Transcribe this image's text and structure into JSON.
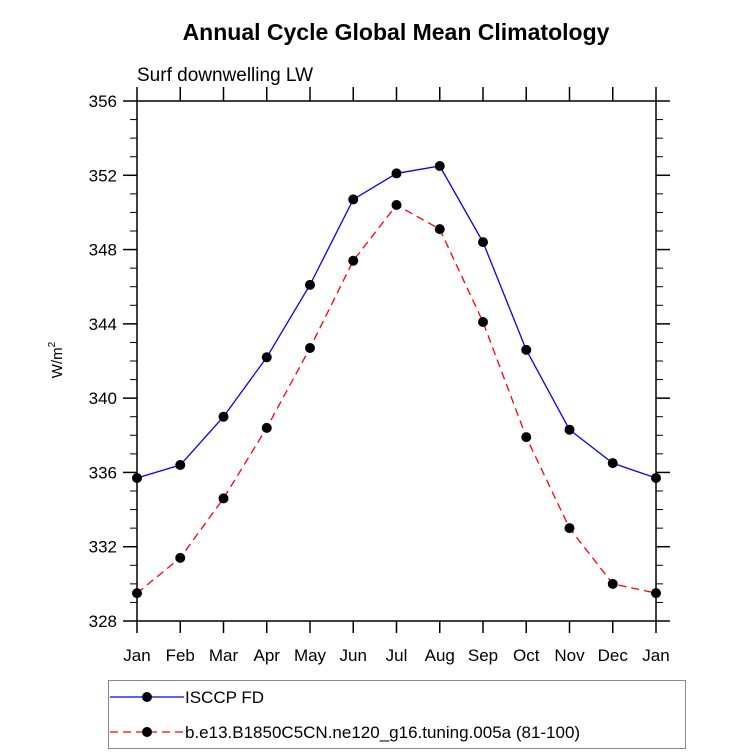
{
  "chart_data": {
    "type": "line",
    "title": "Annual Cycle Global Mean Climatology",
    "subtitle": "Surf downwelling LW",
    "xlabel": "",
    "ylabel": "W/m",
    "ylabel_superscript": "2",
    "categories": [
      "Jan",
      "Feb",
      "Mar",
      "Apr",
      "May",
      "Jun",
      "Jul",
      "Aug",
      "Sep",
      "Oct",
      "Nov",
      "Dec",
      "Jan"
    ],
    "ylim": [
      328,
      356
    ],
    "yticks": [
      328,
      332,
      336,
      340,
      344,
      348,
      352,
      356
    ],
    "yminor_step": 1,
    "grid": false,
    "legend_position": "bottom",
    "series": [
      {
        "name": "ISCCP FD",
        "color": "#0000ff",
        "line_style": "solid",
        "marker": "filled-circle",
        "marker_color": "#000000",
        "values": [
          335.7,
          336.4,
          339.0,
          342.2,
          346.1,
          350.7,
          352.1,
          352.5,
          348.4,
          342.6,
          338.3,
          336.5,
          335.7
        ]
      },
      {
        "name": "b.e13.B1850C5CN.ne120_g16.tuning.005a (81-100)",
        "color": "#ff0000",
        "line_style": "dashed",
        "marker": "filled-circle",
        "marker_color": "#000000",
        "values": [
          329.5,
          331.4,
          334.6,
          338.4,
          342.7,
          347.4,
          350.4,
          349.1,
          344.1,
          337.9,
          333.0,
          330.0,
          329.5
        ]
      }
    ]
  }
}
